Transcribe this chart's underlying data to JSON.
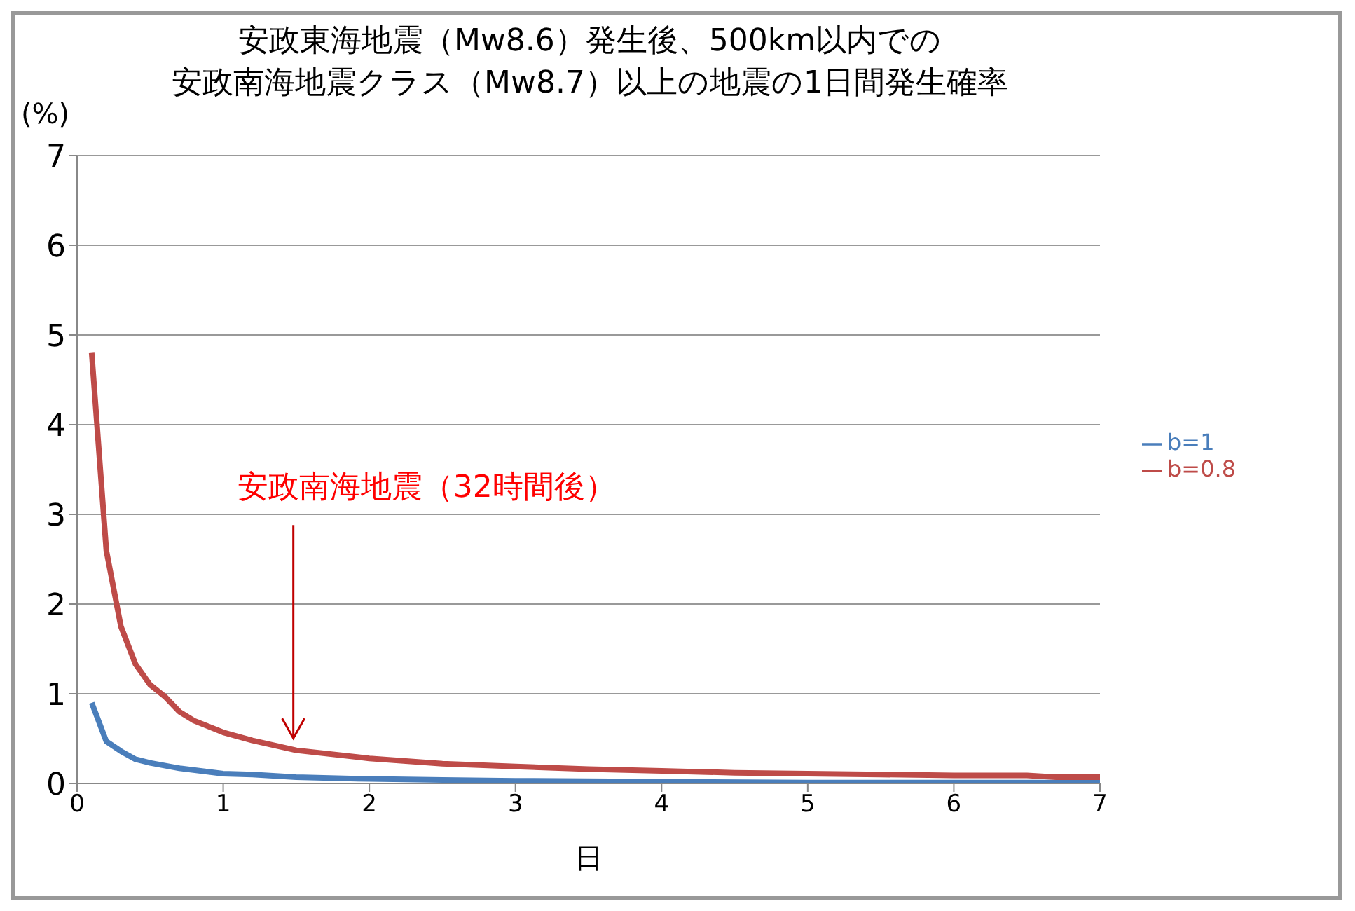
{
  "chart_data": {
    "type": "line",
    "title": "安政東海地震（Mw8.6）発生後、500km以内での",
    "subtitle": "安政南海地震クラス（Mw8.7）以上の地震の1日間発生確率",
    "xlabel": "日",
    "ylabel": "(%)",
    "xlim": [
      0,
      7
    ],
    "xticks": [
      0,
      1,
      2,
      3,
      4,
      5,
      6,
      7
    ],
    "ylim": [
      0,
      7
    ],
    "yticks": [
      0,
      1,
      2,
      3,
      4,
      5,
      6,
      7
    ],
    "grid": "y",
    "legend": "right",
    "marker": "none",
    "series": [
      {
        "name": "b=1",
        "color": "#4a7ebb",
        "x": [
          0.1,
          0.2,
          0.3,
          0.4,
          0.5,
          0.7,
          1,
          1.2,
          1.5,
          2,
          2.5,
          3,
          4,
          5,
          6,
          7
        ],
        "values": [
          0.9,
          0.47,
          0.36,
          0.27,
          0.23,
          0.17,
          0.11,
          0.1,
          0.07,
          0.05,
          0.04,
          0.03,
          0.02,
          0.01,
          0.01,
          0.01
        ]
      },
      {
        "name": "b=0.8",
        "color": "#be4b48",
        "x": [
          0.1,
          0.2,
          0.3,
          0.4,
          0.5,
          0.6,
          0.7,
          0.8,
          1,
          1.2,
          1.5,
          2,
          2.5,
          3,
          3.5,
          4,
          4.5,
          5,
          5.5,
          6,
          6.5,
          6.7,
          7
        ],
        "values": [
          4.8,
          2.6,
          1.75,
          1.33,
          1.1,
          0.97,
          0.8,
          0.7,
          0.57,
          0.48,
          0.37,
          0.28,
          0.22,
          0.19,
          0.16,
          0.14,
          0.12,
          0.11,
          0.1,
          0.09,
          0.09,
          0.07,
          0.07
        ]
      }
    ],
    "annotations": [
      {
        "text": "安政南海地震（32時間後）",
        "x": 1.48,
        "y": 0.38
      }
    ]
  }
}
